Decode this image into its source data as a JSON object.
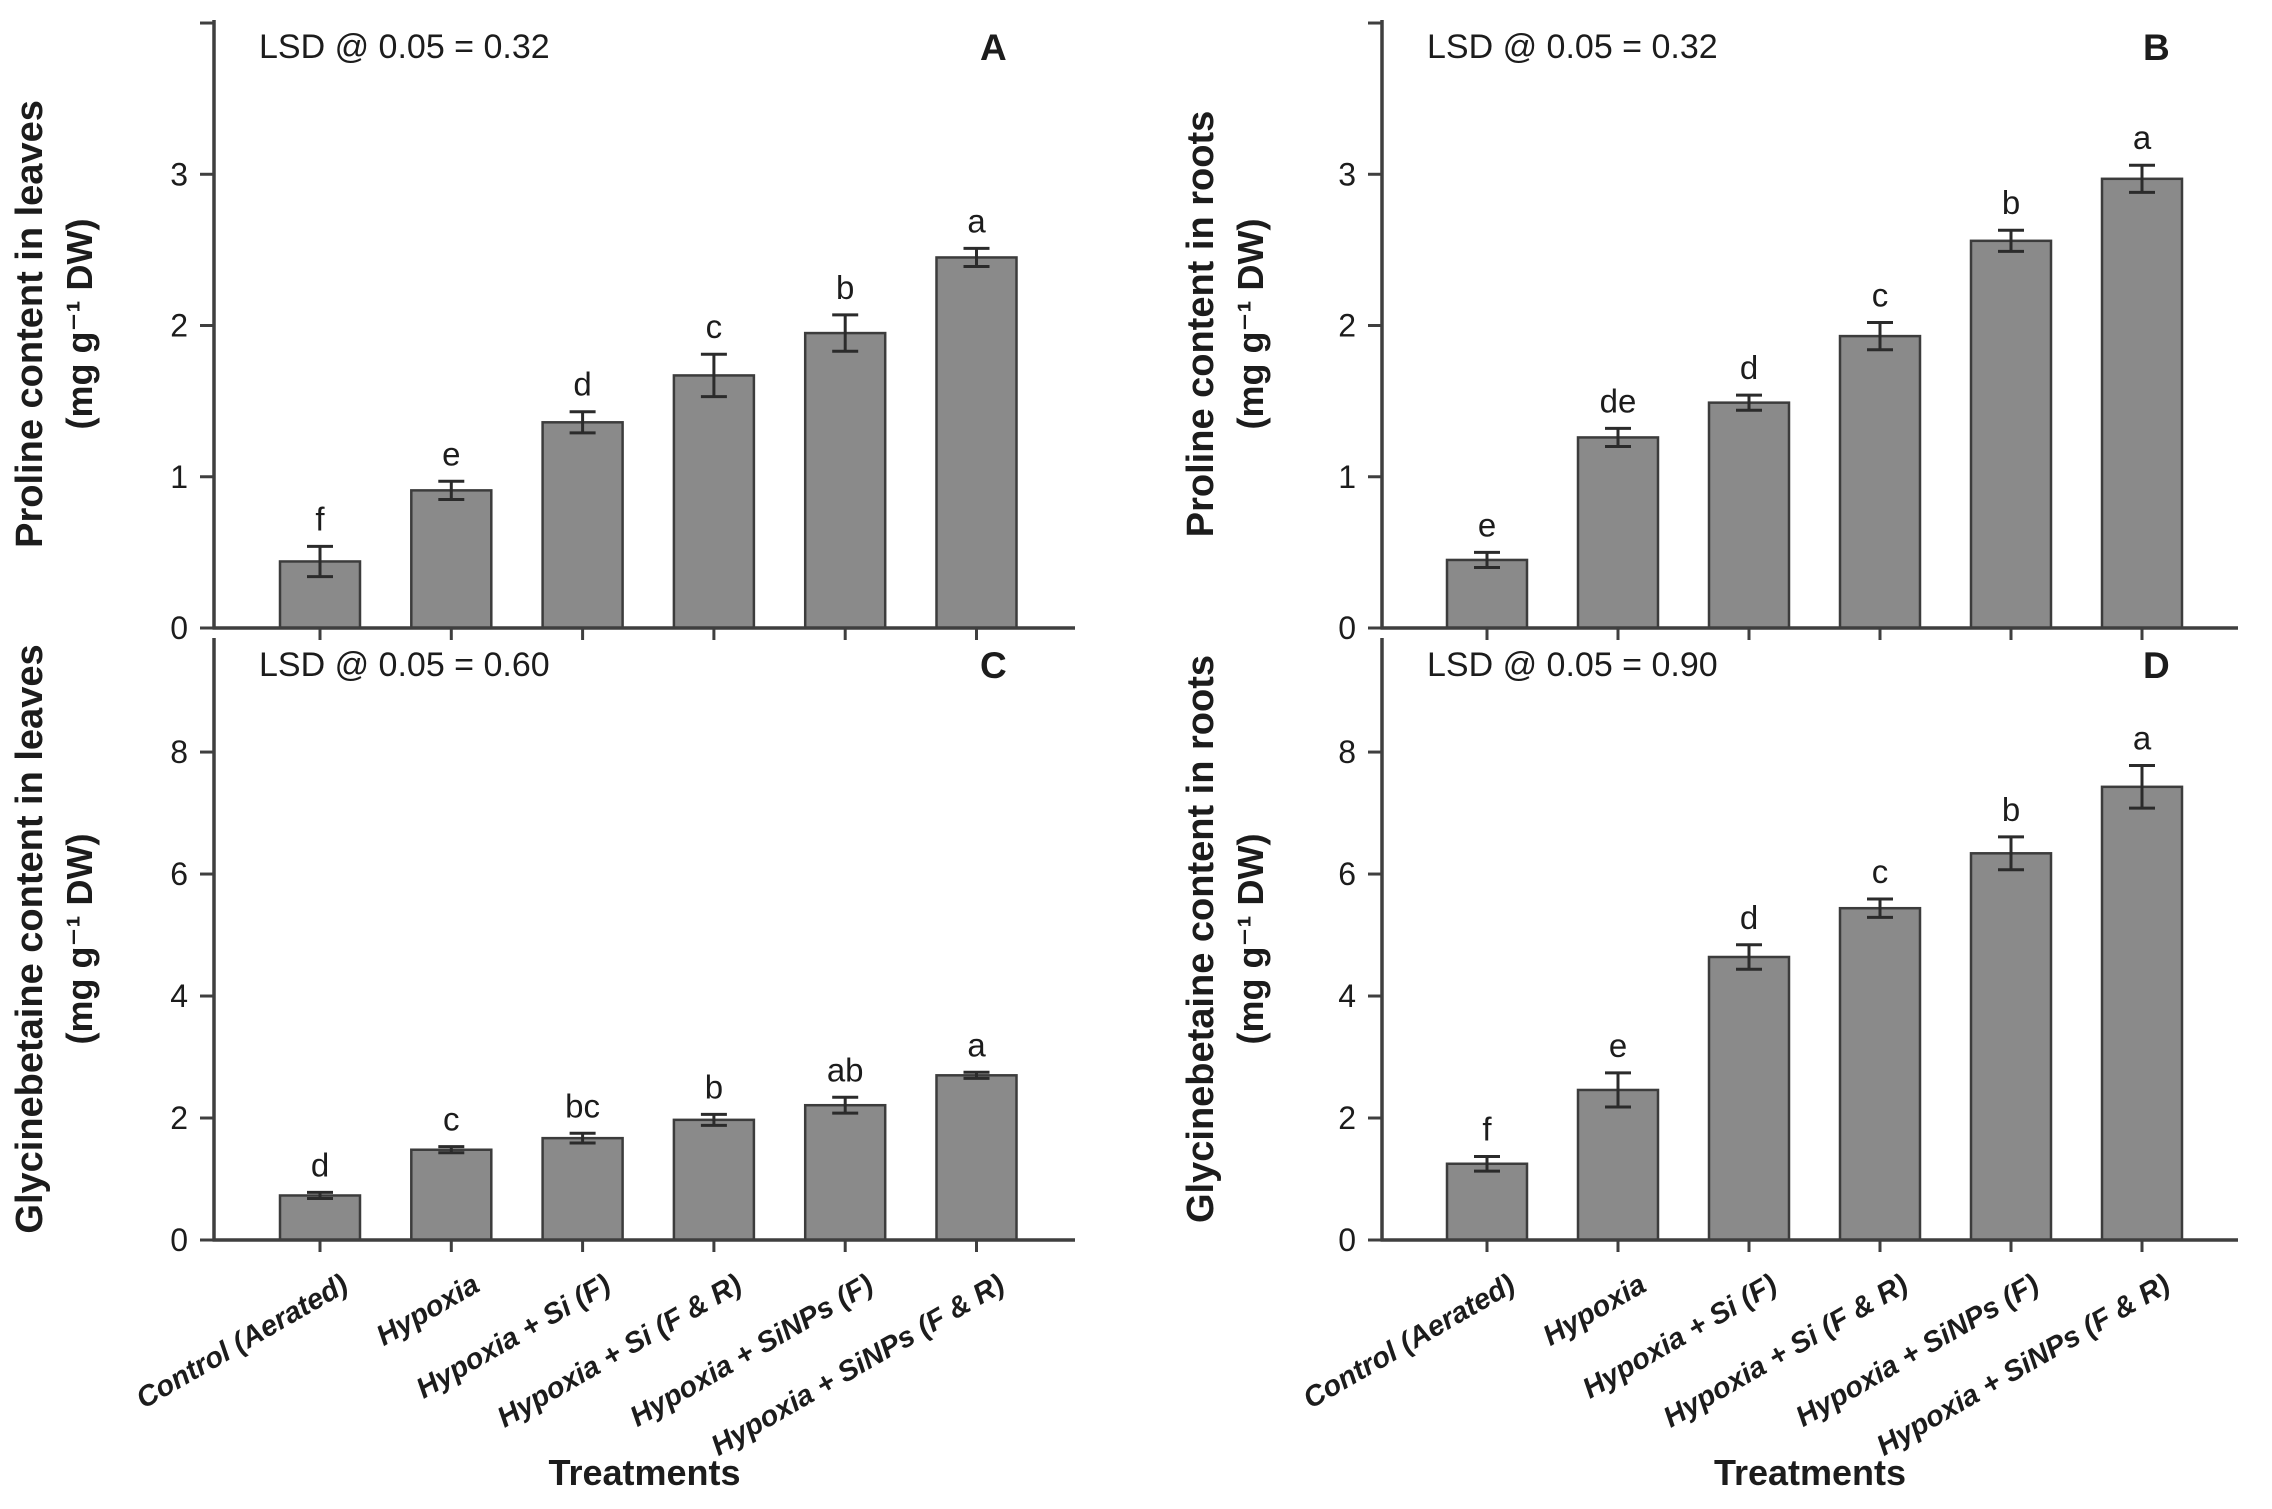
{
  "figure": {
    "background": "#ffffff",
    "text_color": "#1c1c1c",
    "axis_color": "#3f3f3f",
    "bar_fill": "#8a8a8a",
    "bar_stroke": "#3c3c3c",
    "error_color": "#2b2b2b",
    "x_axis_title": "Treatments",
    "categories": [
      "Control (Aerated)",
      "Hypoxia",
      "Hypoxia + Si (F)",
      "Hypoxia + Si (F & R)",
      "Hypoxia + SiNPs (F)",
      "Hypoxia + SiNPs (F & R)"
    ]
  },
  "chart_data": [
    {
      "type": "bar",
      "panel_label": "A",
      "ylabel": "Proline content in leaves",
      "ylabel_units": "(mg g⁻¹ DW)",
      "xlabel": "",
      "lsd_label": "LSD @ 0.05 = 0.32",
      "categories": [
        "Control (Aerated)",
        "Hypoxia",
        "Hypoxia + Si (F)",
        "Hypoxia + Si (F & R)",
        "Hypoxia + SiNPs (F)",
        "Hypoxia + SiNPs (F & R)"
      ],
      "values": [
        0.44,
        0.91,
        1.36,
        1.67,
        1.95,
        2.45
      ],
      "errors": [
        0.1,
        0.06,
        0.07,
        0.14,
        0.12,
        0.06
      ],
      "sig_letters": [
        "f",
        "e",
        "d",
        "c",
        "b",
        "a"
      ],
      "yticks": [
        0,
        1,
        2,
        3
      ],
      "unlabeled_ticks": [
        4
      ],
      "ylim": [
        0,
        4.02
      ],
      "grid": false,
      "show_x_labels": false,
      "show_x_title": false
    },
    {
      "type": "bar",
      "panel_label": "B",
      "ylabel": "Proline content in roots",
      "ylabel_units": "(mg g⁻¹ DW)",
      "xlabel": "",
      "lsd_label": "LSD @ 0.05 = 0.32",
      "categories": [
        "Control (Aerated)",
        "Hypoxia",
        "Hypoxia + Si (F)",
        "Hypoxia + Si (F & R)",
        "Hypoxia + SiNPs (F)",
        "Hypoxia + SiNPs (F & R)"
      ],
      "values": [
        0.45,
        1.26,
        1.49,
        1.93,
        2.56,
        2.97
      ],
      "errors": [
        0.05,
        0.06,
        0.05,
        0.09,
        0.07,
        0.09
      ],
      "sig_letters": [
        "e",
        "de",
        "d",
        "c",
        "b",
        "a"
      ],
      "yticks": [
        0,
        1,
        2,
        3
      ],
      "unlabeled_ticks": [
        4
      ],
      "ylim": [
        0,
        4.02
      ],
      "grid": false,
      "show_x_labels": false,
      "show_x_title": false
    },
    {
      "type": "bar",
      "panel_label": "C",
      "ylabel": "Glycinebetaine content in leaves",
      "ylabel_units": "(mg g⁻¹ DW)",
      "xlabel": "Treatments",
      "lsd_label": "LSD @ 0.05 = 0.60",
      "categories": [
        "Control (Aerated)",
        "Hypoxia",
        "Hypoxia + Si (F)",
        "Hypoxia + Si (F & R)",
        "Hypoxia + SiNPs (F)",
        "Hypoxia + SiNPs (F & R)"
      ],
      "values": [
        0.73,
        1.48,
        1.67,
        1.97,
        2.21,
        2.7
      ],
      "errors": [
        0.05,
        0.05,
        0.08,
        0.09,
        0.13,
        0.05
      ],
      "sig_letters": [
        "d",
        "c",
        "bc",
        "b",
        "ab",
        "a"
      ],
      "yticks": [
        0,
        2,
        4,
        6,
        8
      ],
      "unlabeled_ticks": [],
      "ylim": [
        0,
        9.87
      ],
      "grid": false,
      "show_x_labels": true,
      "show_x_title": true
    },
    {
      "type": "bar",
      "panel_label": "D",
      "ylabel": "Glycinebetaine content in roots",
      "ylabel_units": "(mg g⁻¹ DW)",
      "xlabel": "Treatments",
      "lsd_label": "LSD @ 0.05 = 0.90",
      "categories": [
        "Control (Aerated)",
        "Hypoxia",
        "Hypoxia + Si (F)",
        "Hypoxia + Si (F & R)",
        "Hypoxia + SiNPs (F)",
        "Hypoxia + SiNPs (F & R)"
      ],
      "values": [
        1.25,
        2.46,
        4.64,
        5.44,
        6.34,
        7.43
      ],
      "errors": [
        0.12,
        0.28,
        0.2,
        0.15,
        0.27,
        0.35
      ],
      "sig_letters": [
        "f",
        "e",
        "d",
        "c",
        "b",
        "a"
      ],
      "yticks": [
        0,
        2,
        4,
        6,
        8
      ],
      "unlabeled_ticks": [],
      "ylim": [
        0,
        9.87
      ],
      "grid": false,
      "show_x_labels": true,
      "show_x_title": true
    }
  ]
}
